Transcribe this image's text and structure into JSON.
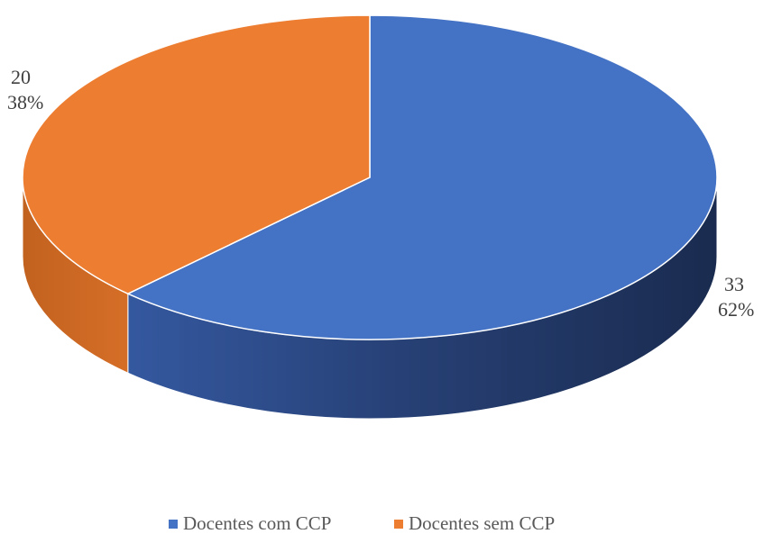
{
  "chart_data": {
    "type": "pie",
    "categories": [
      "Docentes com CCP",
      "Docentes sem CCP"
    ],
    "values": [
      33,
      20
    ],
    "percentages": [
      62,
      38
    ],
    "percentage_labels": [
      "62%",
      "38%"
    ],
    "colors": [
      "#4472c4",
      "#ed7d31"
    ],
    "legend": "bottom"
  }
}
